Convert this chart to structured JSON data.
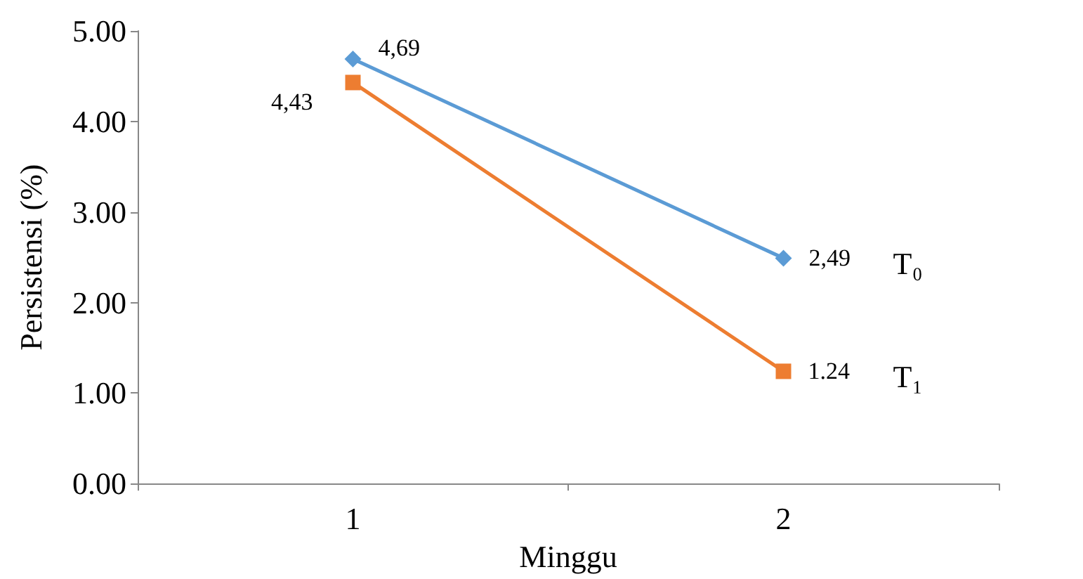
{
  "chart_data": {
    "type": "line",
    "xlabel": "Minggu",
    "ylabel": "Persistensi (%)",
    "categories": [
      "1",
      "2"
    ],
    "series": [
      {
        "name": "T₀",
        "color": "#5b9bd5",
        "marker": "diamond",
        "values": [
          4.69,
          2.49
        ],
        "value_labels": [
          "4,69",
          "2,49"
        ]
      },
      {
        "name": "T₁",
        "color": "#ed7d31",
        "marker": "square",
        "values": [
          4.43,
          1.24
        ],
        "value_labels": [
          "4,43",
          "1.24"
        ]
      }
    ],
    "ylim": [
      0,
      5
    ],
    "yticks": [
      {
        "value": 0,
        "label": "0.00"
      },
      {
        "value": 1,
        "label": "1.00"
      },
      {
        "value": 2,
        "label": "2.00"
      },
      {
        "value": 3,
        "label": "3.00"
      },
      {
        "value": 4,
        "label": "4.00"
      },
      {
        "value": 5,
        "label": "5.00"
      }
    ],
    "grid": false,
    "legend": false,
    "line_style": "solid"
  }
}
